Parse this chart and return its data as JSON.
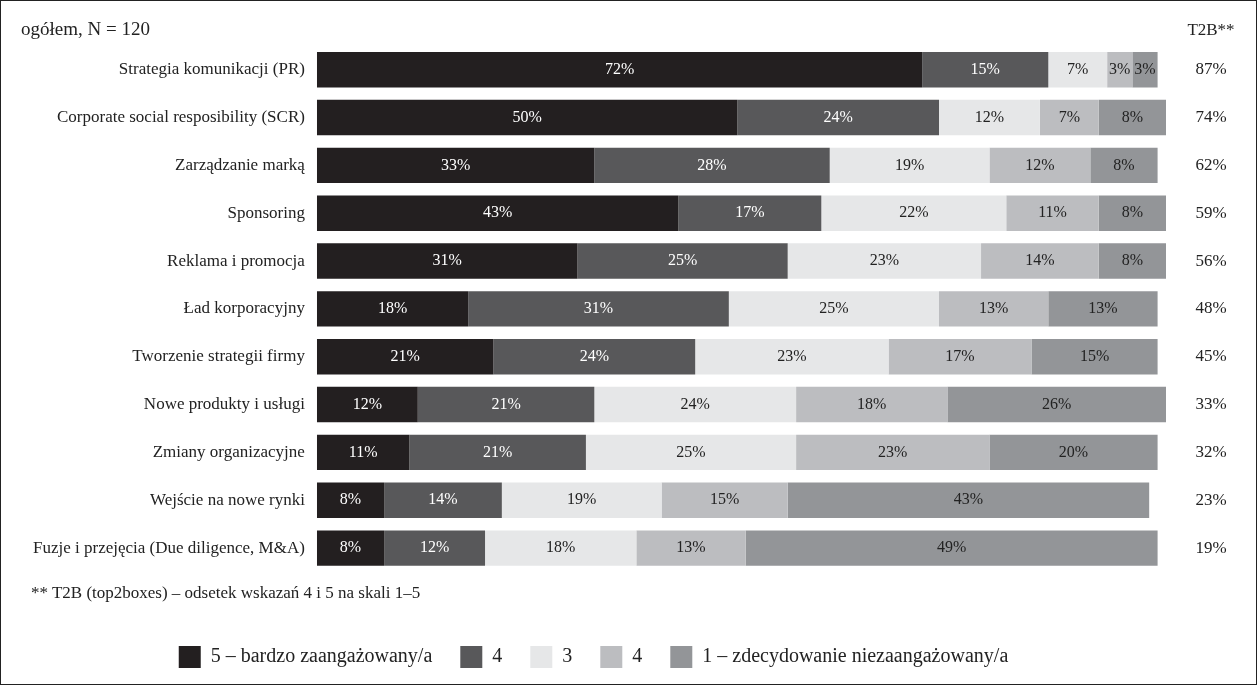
{
  "chart_data": {
    "type": "bar",
    "orientation": "horizontal",
    "stacked": true,
    "title": "ogółem, N = 120",
    "categories": [
      "Strategia komunikacji (PR)",
      "Corporate social resposibility (SCR)",
      "Zarządzanie marką",
      "Sponsoring",
      "Reklama i promocja",
      "Ład korporacyjny",
      "Tworzenie strategii firmy",
      "Nowe produkty i usługi",
      "Zmiany organizacyjne",
      "Wejście na nowe rynki",
      "Fuzje i przejęcia (Due diligence, M&A)"
    ],
    "series": [
      {
        "name": "5 – bardzo zaangażowany/a",
        "color": "#231f20",
        "values": [
          72,
          50,
          33,
          43,
          31,
          18,
          21,
          12,
          11,
          8,
          8
        ],
        "value_labels": [
          "72%",
          "50%",
          "33%",
          "43%",
          "31%",
          "18%",
          "21%",
          "12%",
          "11%",
          "8%",
          "8%"
        ]
      },
      {
        "name": "4",
        "color": "#58585a",
        "values": [
          15,
          24,
          28,
          17,
          25,
          31,
          24,
          21,
          21,
          14,
          12
        ],
        "value_labels": [
          "15%",
          "24%",
          "28%",
          "17%",
          "25%",
          "31%",
          "24%",
          "21%",
          "21%",
          "14%",
          "12%"
        ]
      },
      {
        "name": "3",
        "color": "#e6e7e8",
        "values": [
          7,
          12,
          19,
          22,
          23,
          25,
          23,
          24,
          25,
          19,
          18
        ],
        "value_labels": [
          "7%",
          "12%",
          "19%",
          "22%",
          "23%",
          "25%",
          "23%",
          "24%",
          "25%",
          "19%",
          "18%"
        ]
      },
      {
        "name": "4",
        "color": "#bcbdc0",
        "values": [
          3,
          7,
          12,
          11,
          14,
          13,
          17,
          18,
          23,
          15,
          13
        ],
        "value_labels": [
          "3%",
          "7%",
          "12%",
          "11%",
          "14%",
          "13%",
          "17%",
          "18%",
          "23%",
          "15%",
          "13%"
        ]
      },
      {
        "name": "1 – zdecydowanie niezaangażowany/a",
        "color": "#939598",
        "values": [
          3,
          8,
          8,
          8,
          8,
          13,
          15,
          26,
          20,
          43,
          49
        ],
        "value_labels": [
          "3%",
          "8%",
          "8%",
          "8%",
          "8%",
          "13%",
          "15%",
          "26%",
          "20%",
          "43%",
          "49%"
        ]
      }
    ],
    "annotations": [
      "T2B**",
      "** T2B (top2boxes) – odsetek wskazań 4 i 5 na skali 1–5",
      "87%",
      "74%",
      "62%",
      "59%",
      "56%",
      "48%",
      "45%",
      "33%",
      "32%",
      "23%",
      "19%"
    ],
    "legend": "bottom",
    "grid": false
  }
}
